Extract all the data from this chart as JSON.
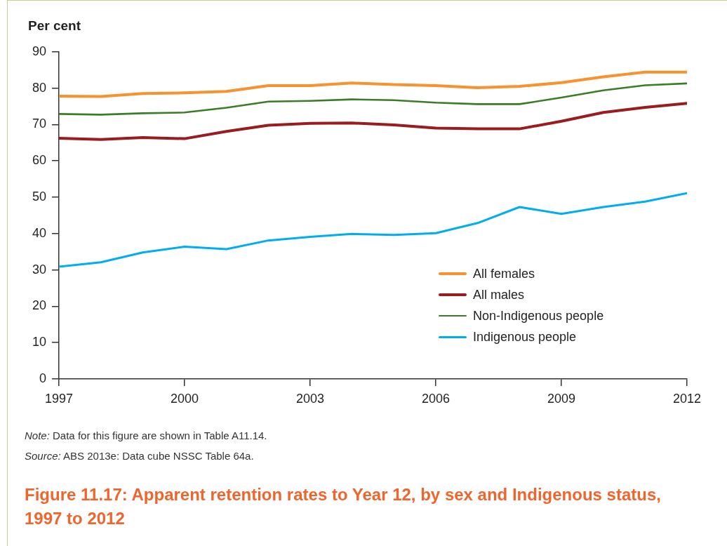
{
  "chart_data": {
    "type": "line",
    "title": "Figure 11.17: Apparent retention rates to Year 12, by sex and Indigenous status, 1997 to 2012",
    "ylabel": "Per cent",
    "annotations": [
      "Note: Data for this figure are shown in Table A11.14.",
      "Source: ABS 2013e: Data cube NSSC Table 64a."
    ],
    "x": [
      1997,
      1998,
      1999,
      2000,
      2001,
      2002,
      2003,
      2004,
      2005,
      2006,
      2007,
      2008,
      2009,
      2010,
      2011,
      2012
    ],
    "series": [
      {
        "name": "All females",
        "color": "#f7922e",
        "values": [
          77.8,
          77.7,
          78.5,
          78.7,
          79.1,
          80.7,
          80.7,
          81.4,
          81.0,
          80.7,
          80.1,
          80.5,
          81.5,
          83.1,
          84.4,
          84.4
        ]
      },
      {
        "name": "All males",
        "color": "#9b1c20",
        "values": [
          66.2,
          65.9,
          66.4,
          66.1,
          68.1,
          69.8,
          70.3,
          70.4,
          69.9,
          69.0,
          68.8,
          68.8,
          70.9,
          73.3,
          74.7,
          75.8
        ]
      },
      {
        "name": "Non-Indigenous people",
        "color": "#3a7d27",
        "values": [
          72.9,
          72.7,
          73.1,
          73.3,
          74.6,
          76.3,
          76.5,
          76.9,
          76.7,
          76.0,
          75.6,
          75.6,
          77.4,
          79.4,
          80.8,
          81.3
        ]
      },
      {
        "name": "Indigenous people",
        "color": "#00aeef",
        "values": [
          30.9,
          32.1,
          34.8,
          36.4,
          35.7,
          38.1,
          39.1,
          39.9,
          39.6,
          40.1,
          42.9,
          47.3,
          45.4,
          47.3,
          48.8,
          51.1
        ]
      }
    ],
    "xlim": [
      1997,
      2012
    ],
    "xticks": [
      1997,
      2000,
      2003,
      2006,
      2009,
      2012
    ],
    "ylim": [
      0,
      90
    ],
    "yticks": [
      0,
      10,
      20,
      30,
      40,
      50,
      60,
      70,
      80,
      90
    ],
    "grid": false,
    "legend": "bottom right",
    "line_style": "solid"
  }
}
